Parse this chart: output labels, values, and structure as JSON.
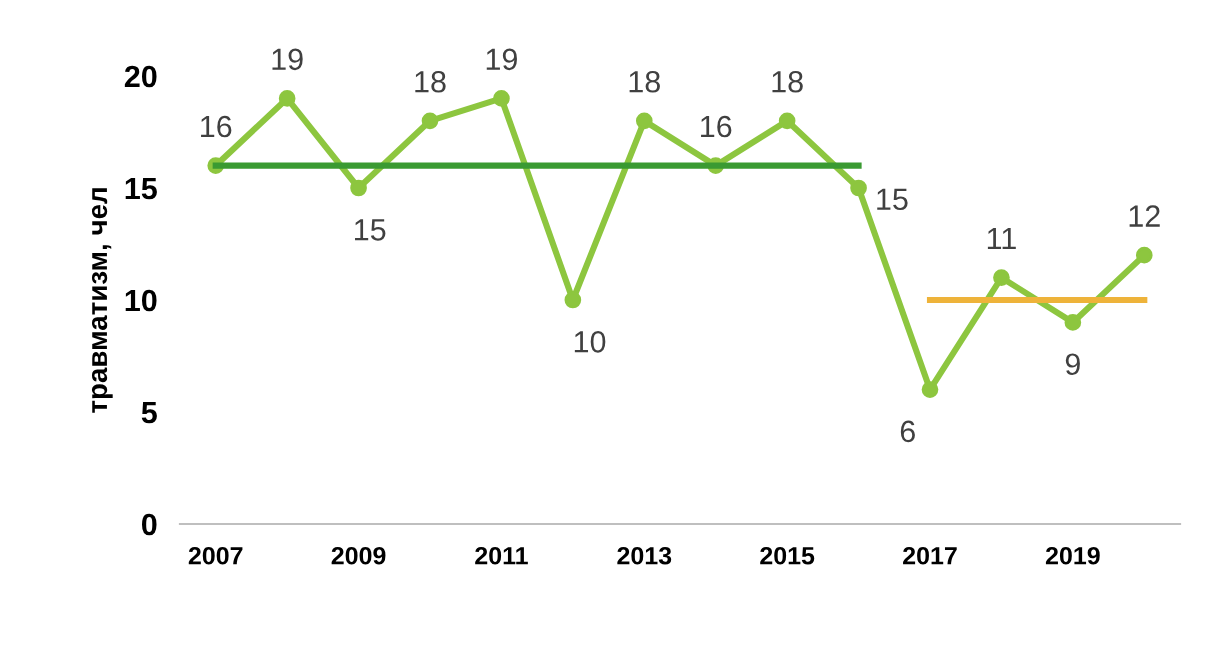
{
  "chart_data": {
    "type": "line",
    "ylabel": "травматизм, чел",
    "x": [
      2007,
      2008,
      2009,
      2010,
      2011,
      2012,
      2013,
      2014,
      2015,
      2016,
      2017,
      2018,
      2019,
      2020
    ],
    "series": [
      {
        "color": "#8dc63f",
        "values": [
          16,
          19,
          15,
          18,
          19,
          10,
          18,
          16,
          18,
          15,
          6,
          11,
          9,
          12
        ],
        "marker": "circle",
        "data_labels": true
      },
      {
        "color": "#3a9a32",
        "x": [
          2007,
          2016
        ],
        "values": [
          16,
          16
        ],
        "marker": "none"
      },
      {
        "color": "#eeb33a",
        "x": [
          2017,
          2020
        ],
        "values": [
          10,
          10
        ],
        "marker": "none"
      }
    ],
    "xlim": [
      2006.5,
      2020.5
    ],
    "xticks": [
      2007,
      2009,
      2011,
      2013,
      2015,
      2017,
      2019
    ],
    "ylim": [
      0,
      20
    ],
    "yticks": [
      0,
      5,
      10,
      15,
      20
    ],
    "grid": false,
    "legend": false,
    "line_style": "solid"
  }
}
